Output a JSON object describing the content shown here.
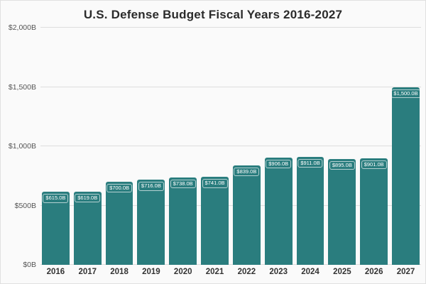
{
  "chart_data": {
    "type": "bar",
    "title": "U.S. Defense Budget Fiscal Years 2016-2027",
    "categories": [
      "2016",
      "2017",
      "2018",
      "2019",
      "2020",
      "2021",
      "2022",
      "2023",
      "2024",
      "2025",
      "2026",
      "2027"
    ],
    "values": [
      615,
      619,
      700,
      716,
      738,
      741,
      839,
      906,
      911,
      895,
      901,
      1500
    ],
    "bar_labels": [
      "$615.0B",
      "$619.0B",
      "$700.0B",
      "$716.0B",
      "$738.0B",
      "$741.0B",
      "$839.0B",
      "$906.0B",
      "$911.0B",
      "$895.0B",
      "$901.0B",
      "$1,500.0B"
    ],
    "xlabel": "",
    "ylabel": "",
    "ylim": [
      0,
      2000
    ],
    "yticks": [
      {
        "value": 0,
        "label": "$0B"
      },
      {
        "value": 500,
        "label": "$500B"
      },
      {
        "value": 1000,
        "label": "$1,000B"
      },
      {
        "value": 1500,
        "label": "$1,500B"
      },
      {
        "value": 2000,
        "label": "$2,000B"
      }
    ],
    "grid": true,
    "legend": false,
    "bar_color": "#2a7d7e",
    "background": "#fafafa"
  }
}
